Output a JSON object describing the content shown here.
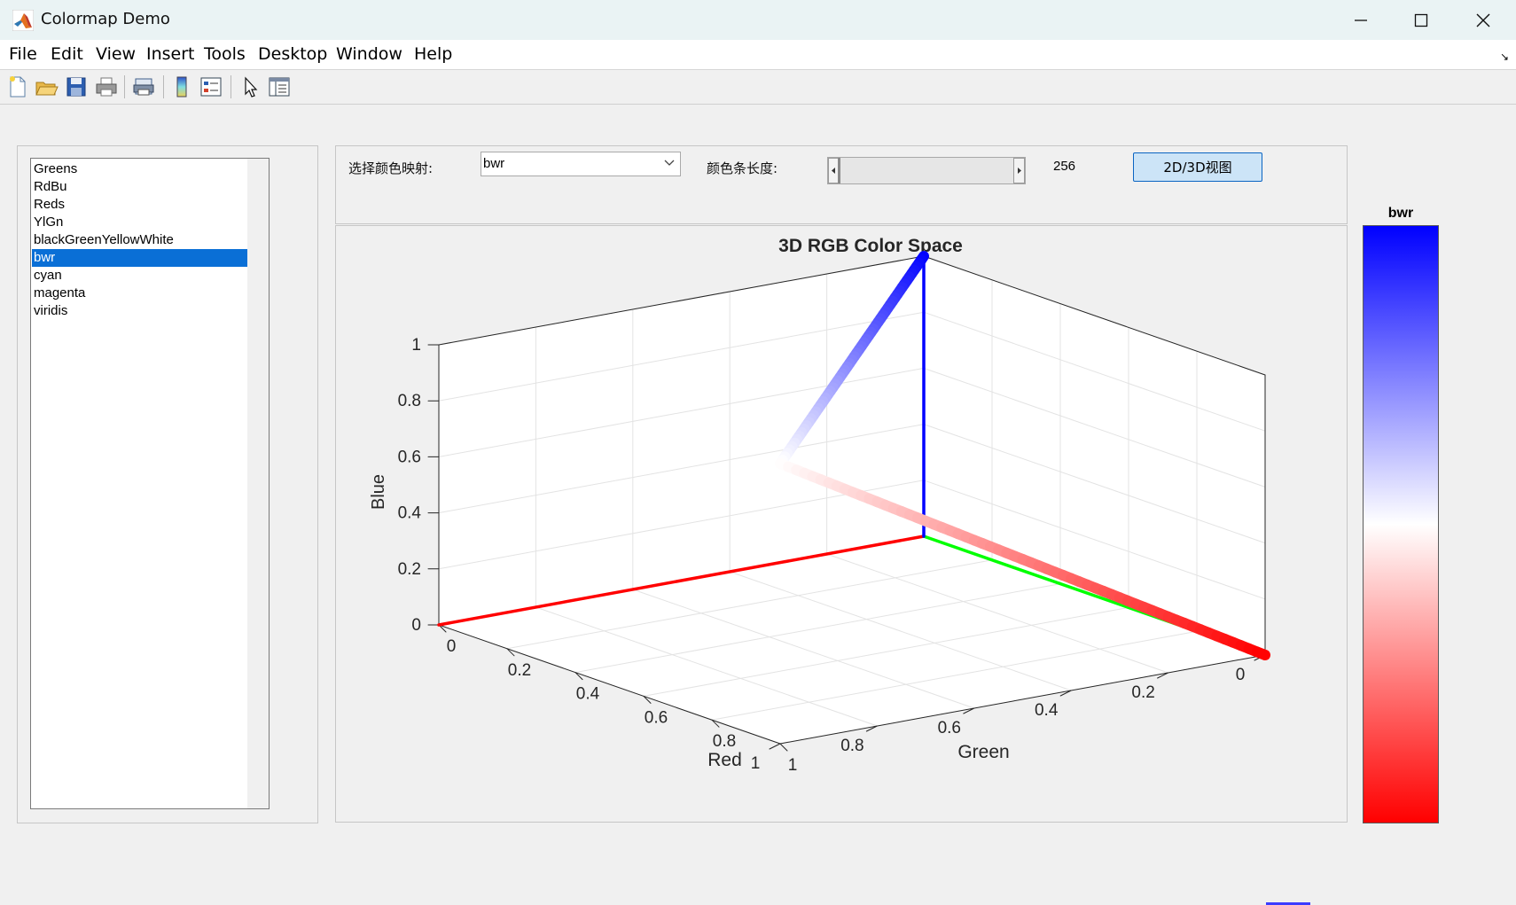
{
  "window": {
    "title": "Colormap Demo",
    "controls": [
      "minimize-icon",
      "maximize-icon",
      "close-icon"
    ]
  },
  "menu": {
    "items": [
      {
        "label": "File"
      },
      {
        "label": "Edit"
      },
      {
        "label": "View"
      },
      {
        "label": "Insert"
      },
      {
        "label": "Tools"
      },
      {
        "label": "Desktop"
      },
      {
        "label": "Window"
      },
      {
        "label": "Help"
      }
    ]
  },
  "toolbar": {
    "icons": [
      "new-figure-icon",
      "open-file-icon",
      "save-icon",
      "print-icon",
      "print-preview-icon",
      "insert-colorbar-icon",
      "insert-legend-icon",
      "pointer-icon",
      "property-inspector-icon"
    ]
  },
  "colormap_list": {
    "items": [
      "Greens",
      "RdBu",
      "Reds",
      "YlGn",
      "blackGreenYellowWhite",
      "bwr",
      "cyan",
      "magenta",
      "viridis"
    ],
    "selected_index": 5
  },
  "controls": {
    "colormap_label": "选择颜色映射:",
    "colormap_value": "bwr",
    "length_label": "颜色条长度:",
    "length_value": "256",
    "view_button_label": "2D/3D视图"
  },
  "chart_data": {
    "type": "line",
    "title": "3D RGB Color Space",
    "xlabel": "Red",
    "ylabel": "Green",
    "zlabel": "Blue",
    "xlim": [
      0,
      1
    ],
    "ylim": [
      0,
      1
    ],
    "zlim": [
      0,
      1
    ],
    "x_ticks": [
      "0",
      "0.2",
      "0.4",
      "0.6",
      "0.8",
      "1"
    ],
    "y_ticks": [
      "0",
      "0.2",
      "0.4",
      "0.6",
      "0.8",
      "1"
    ],
    "z_ticks": [
      "0",
      "0.2",
      "0.4",
      "0.6",
      "0.8",
      "1"
    ],
    "grid": true,
    "axes_lines": [
      {
        "name": "",
        "color": "#ff0000",
        "from": [
          0,
          0,
          0
        ],
        "to": [
          0,
          1,
          0
        ]
      },
      {
        "name": "",
        "color": "#00ff00",
        "from": [
          0,
          0,
          0
        ],
        "to": [
          1,
          0,
          0
        ]
      },
      {
        "name": "",
        "color": "#0000ff",
        "from": [
          0,
          0,
          0
        ],
        "to": [
          0,
          0,
          1
        ]
      }
    ],
    "series": [
      {
        "name": "",
        "colormap": "bwr",
        "points": [
          [
            0,
            0,
            1
          ],
          [
            0.5,
            0.5,
            1
          ],
          [
            1,
            1,
            1
          ],
          [
            1,
            0.5,
            0.5
          ],
          [
            1,
            0,
            0
          ]
        ],
        "colors": [
          "#0000ff",
          "#8080ff",
          "#ffffff",
          "#ff8080",
          "#ff0000"
        ]
      }
    ]
  },
  "colorbar": {
    "title": "bwr",
    "colors": [
      "#0000ff",
      "#ffffff",
      "#ff0000"
    ]
  }
}
